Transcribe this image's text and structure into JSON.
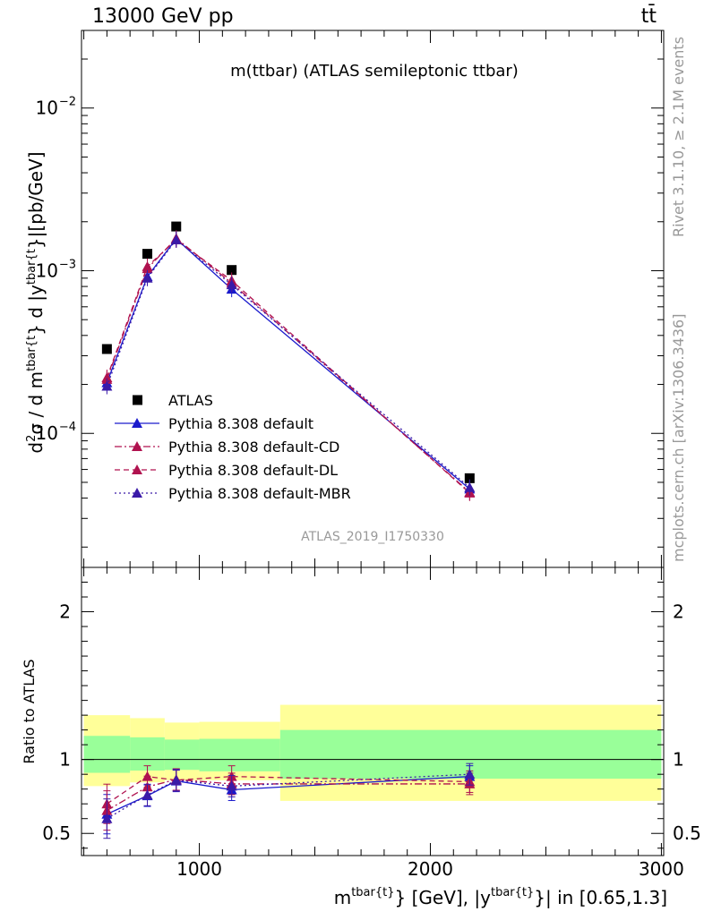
{
  "header": {
    "energy_label": "13000 GeV pp",
    "process_label": "tt̄"
  },
  "side_labels": {
    "rivet": "Rivet 3.1.10, ≥ 2.1M events",
    "mcplots": "mcplots.cern.ch [arXiv:1306.3436]"
  },
  "chart_data": [
    {
      "type": "scatter",
      "title": "m(ttbar) (ATLAS semileptonic ttbar)",
      "analysis_id": "ATLAS_2019_I1750330",
      "ylabel_main": "d",
      "ylabel_sup1": "2",
      "ylabel_sigma": "σ / d m",
      "ylabel_sup2": "tbar{t",
      "ylabel_mid": "} d |y",
      "ylabel_sup3": "tbar{t",
      "ylabel_end": "}|[pb/GeV]",
      "y_scale": "log",
      "ylim": [
        1.5e-05,
        0.03
      ],
      "y_ticks": [
        {
          "value": 0.0001,
          "base": "10",
          "exp": "−4"
        },
        {
          "value": 0.001,
          "base": "10",
          "exp": "−3"
        },
        {
          "value": 0.01,
          "base": "10",
          "exp": "−2"
        }
      ],
      "xlim": [
        490,
        3010
      ],
      "legend_placement": "bottom-left",
      "x": [
        600,
        775,
        900,
        1140,
        2170
      ],
      "series": [
        {
          "name": "ATLAS",
          "color": "#000000",
          "marker": "square",
          "line": "none",
          "values": [
            0.00033,
            0.00127,
            0.00187,
            0.00101,
            5.3e-05
          ]
        },
        {
          "name": "Pythia 8.308 default",
          "color": "#1a1acc",
          "marker": "triangle",
          "line": "solid",
          "values": [
            0.000205,
            0.00092,
            0.00157,
            0.00077,
            4.55e-05
          ]
        },
        {
          "name": "Pythia 8.308 default-CD",
          "color": "#b0124f",
          "marker": "triangle",
          "line": "dashdot",
          "values": [
            0.000215,
            0.00103,
            0.00158,
            0.00084,
            4.35e-05
          ]
        },
        {
          "name": "Pythia 8.308 default-DL",
          "color": "#b0124f",
          "marker": "triangle",
          "line": "dashed",
          "values": [
            0.00022,
            0.00106,
            0.00155,
            0.00087,
            4.3e-05
          ]
        },
        {
          "name": "Pythia 8.308 default-MBR",
          "color": "#3a1aa8",
          "marker": "triangle",
          "line": "dotted",
          "values": [
            0.000195,
            0.0009,
            0.00155,
            0.00082,
            4.65e-05
          ]
        }
      ]
    },
    {
      "type": "scatter",
      "ylabel": "Ratio to ATLAS",
      "xlabel_main": "m",
      "xlabel_sup1": "tbar{t}",
      "xlabel_mid": "} [GeV], |y",
      "xlabel_sup2": "tbar{t}",
      "xlabel_end": "}| in [0.65,1.3]",
      "y_scale": "linear",
      "ylim": [
        0.35,
        2.3
      ],
      "y_ticks": [
        0.5,
        1,
        2
      ],
      "y_tick_labels": [
        "0.5",
        "1",
        "2"
      ],
      "xlim": [
        490,
        3010
      ],
      "x_ticks": [
        1000,
        2000,
        3000
      ],
      "x_tick_labels": [
        "1000",
        "2000",
        "3000"
      ],
      "reference_line": 1.0,
      "uncertainty_bins": [
        {
          "x_low": 500,
          "x_high": 700,
          "inner": [
            0.91,
            1.16
          ],
          "outer": [
            0.82,
            1.3
          ]
        },
        {
          "x_low": 700,
          "x_high": 850,
          "inner": [
            0.925,
            1.15
          ],
          "outer": [
            0.845,
            1.28
          ]
        },
        {
          "x_low": 850,
          "x_high": 1000,
          "inner": [
            0.93,
            1.135
          ],
          "outer": [
            0.86,
            1.25
          ]
        },
        {
          "x_low": 1000,
          "x_high": 1350,
          "inner": [
            0.92,
            1.14
          ],
          "outer": [
            0.86,
            1.255
          ]
        },
        {
          "x_low": 1350,
          "x_high": 3000,
          "inner": [
            0.87,
            1.2
          ],
          "outer": [
            0.72,
            1.37
          ]
        }
      ],
      "x": [
        600,
        775,
        900,
        1140,
        2170
      ],
      "series": [
        {
          "name": "Pythia 8.308 default",
          "color": "#1a1acc",
          "line": "solid",
          "values": [
            0.63,
            0.755,
            0.855,
            0.795,
            0.885
          ]
        },
        {
          "name": "Pythia 8.308 default-CD",
          "color": "#b0124f",
          "line": "dashdot",
          "values": [
            0.655,
            0.815,
            0.865,
            0.835,
            0.835
          ]
        },
        {
          "name": "Pythia 8.308 default-DL",
          "color": "#b0124f",
          "line": "dashed",
          "values": [
            0.7,
            0.885,
            0.86,
            0.885,
            0.85
          ]
        },
        {
          "name": "Pythia 8.308 default-MBR",
          "color": "#3a1aa8",
          "line": "dotted",
          "values": [
            0.6,
            0.76,
            0.86,
            0.82,
            0.9
          ]
        }
      ]
    }
  ]
}
